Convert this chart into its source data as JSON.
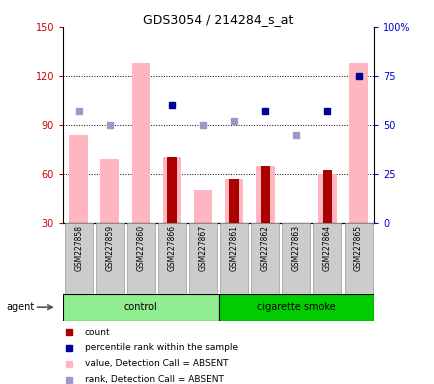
{
  "title": "GDS3054 / 214284_s_at",
  "samples": [
    "GSM227858",
    "GSM227859",
    "GSM227860",
    "GSM227866",
    "GSM227867",
    "GSM227861",
    "GSM227862",
    "GSM227863",
    "GSM227864",
    "GSM227865"
  ],
  "ylim_left": [
    30,
    150
  ],
  "ylim_right": [
    0,
    100
  ],
  "yticks_left": [
    30,
    60,
    90,
    120,
    150
  ],
  "yticks_right": [
    0,
    25,
    50,
    75,
    100
  ],
  "ytick_labels_right": [
    "0",
    "25",
    "50",
    "75",
    "100%"
  ],
  "bar_pink_values": [
    84,
    69,
    128,
    70,
    50,
    57,
    65,
    null,
    60,
    128
  ],
  "bar_red_values": [
    null,
    null,
    null,
    70,
    null,
    57,
    65,
    null,
    62,
    null
  ],
  "dot_blue_dark_pct": [
    null,
    null,
    null,
    60,
    null,
    null,
    57,
    null,
    57,
    75
  ],
  "dot_blue_light_pct": [
    57,
    50,
    null,
    null,
    50,
    52,
    null,
    45,
    null,
    null
  ],
  "bar_pink_color": "#FFB6C1",
  "bar_red_color": "#AA0000",
  "dot_blue_dark_color": "#000099",
  "dot_blue_light_color": "#9999CC",
  "group_control_color": "#90EE90",
  "group_smoke_color": "#00CC00",
  "axis_left_color": "#CC0000",
  "axis_right_color": "#0000CC",
  "bg_color": "#FFFFFF",
  "legend_items": [
    "count",
    "percentile rank within the sample",
    "value, Detection Call = ABSENT",
    "rank, Detection Call = ABSENT"
  ],
  "legend_colors": [
    "#AA0000",
    "#000099",
    "#FFB6C1",
    "#9999CC"
  ],
  "agent_label": "agent",
  "control_label": "control",
  "smoke_label": "cigarette smoke",
  "n_control": 5,
  "n_smoke": 5
}
